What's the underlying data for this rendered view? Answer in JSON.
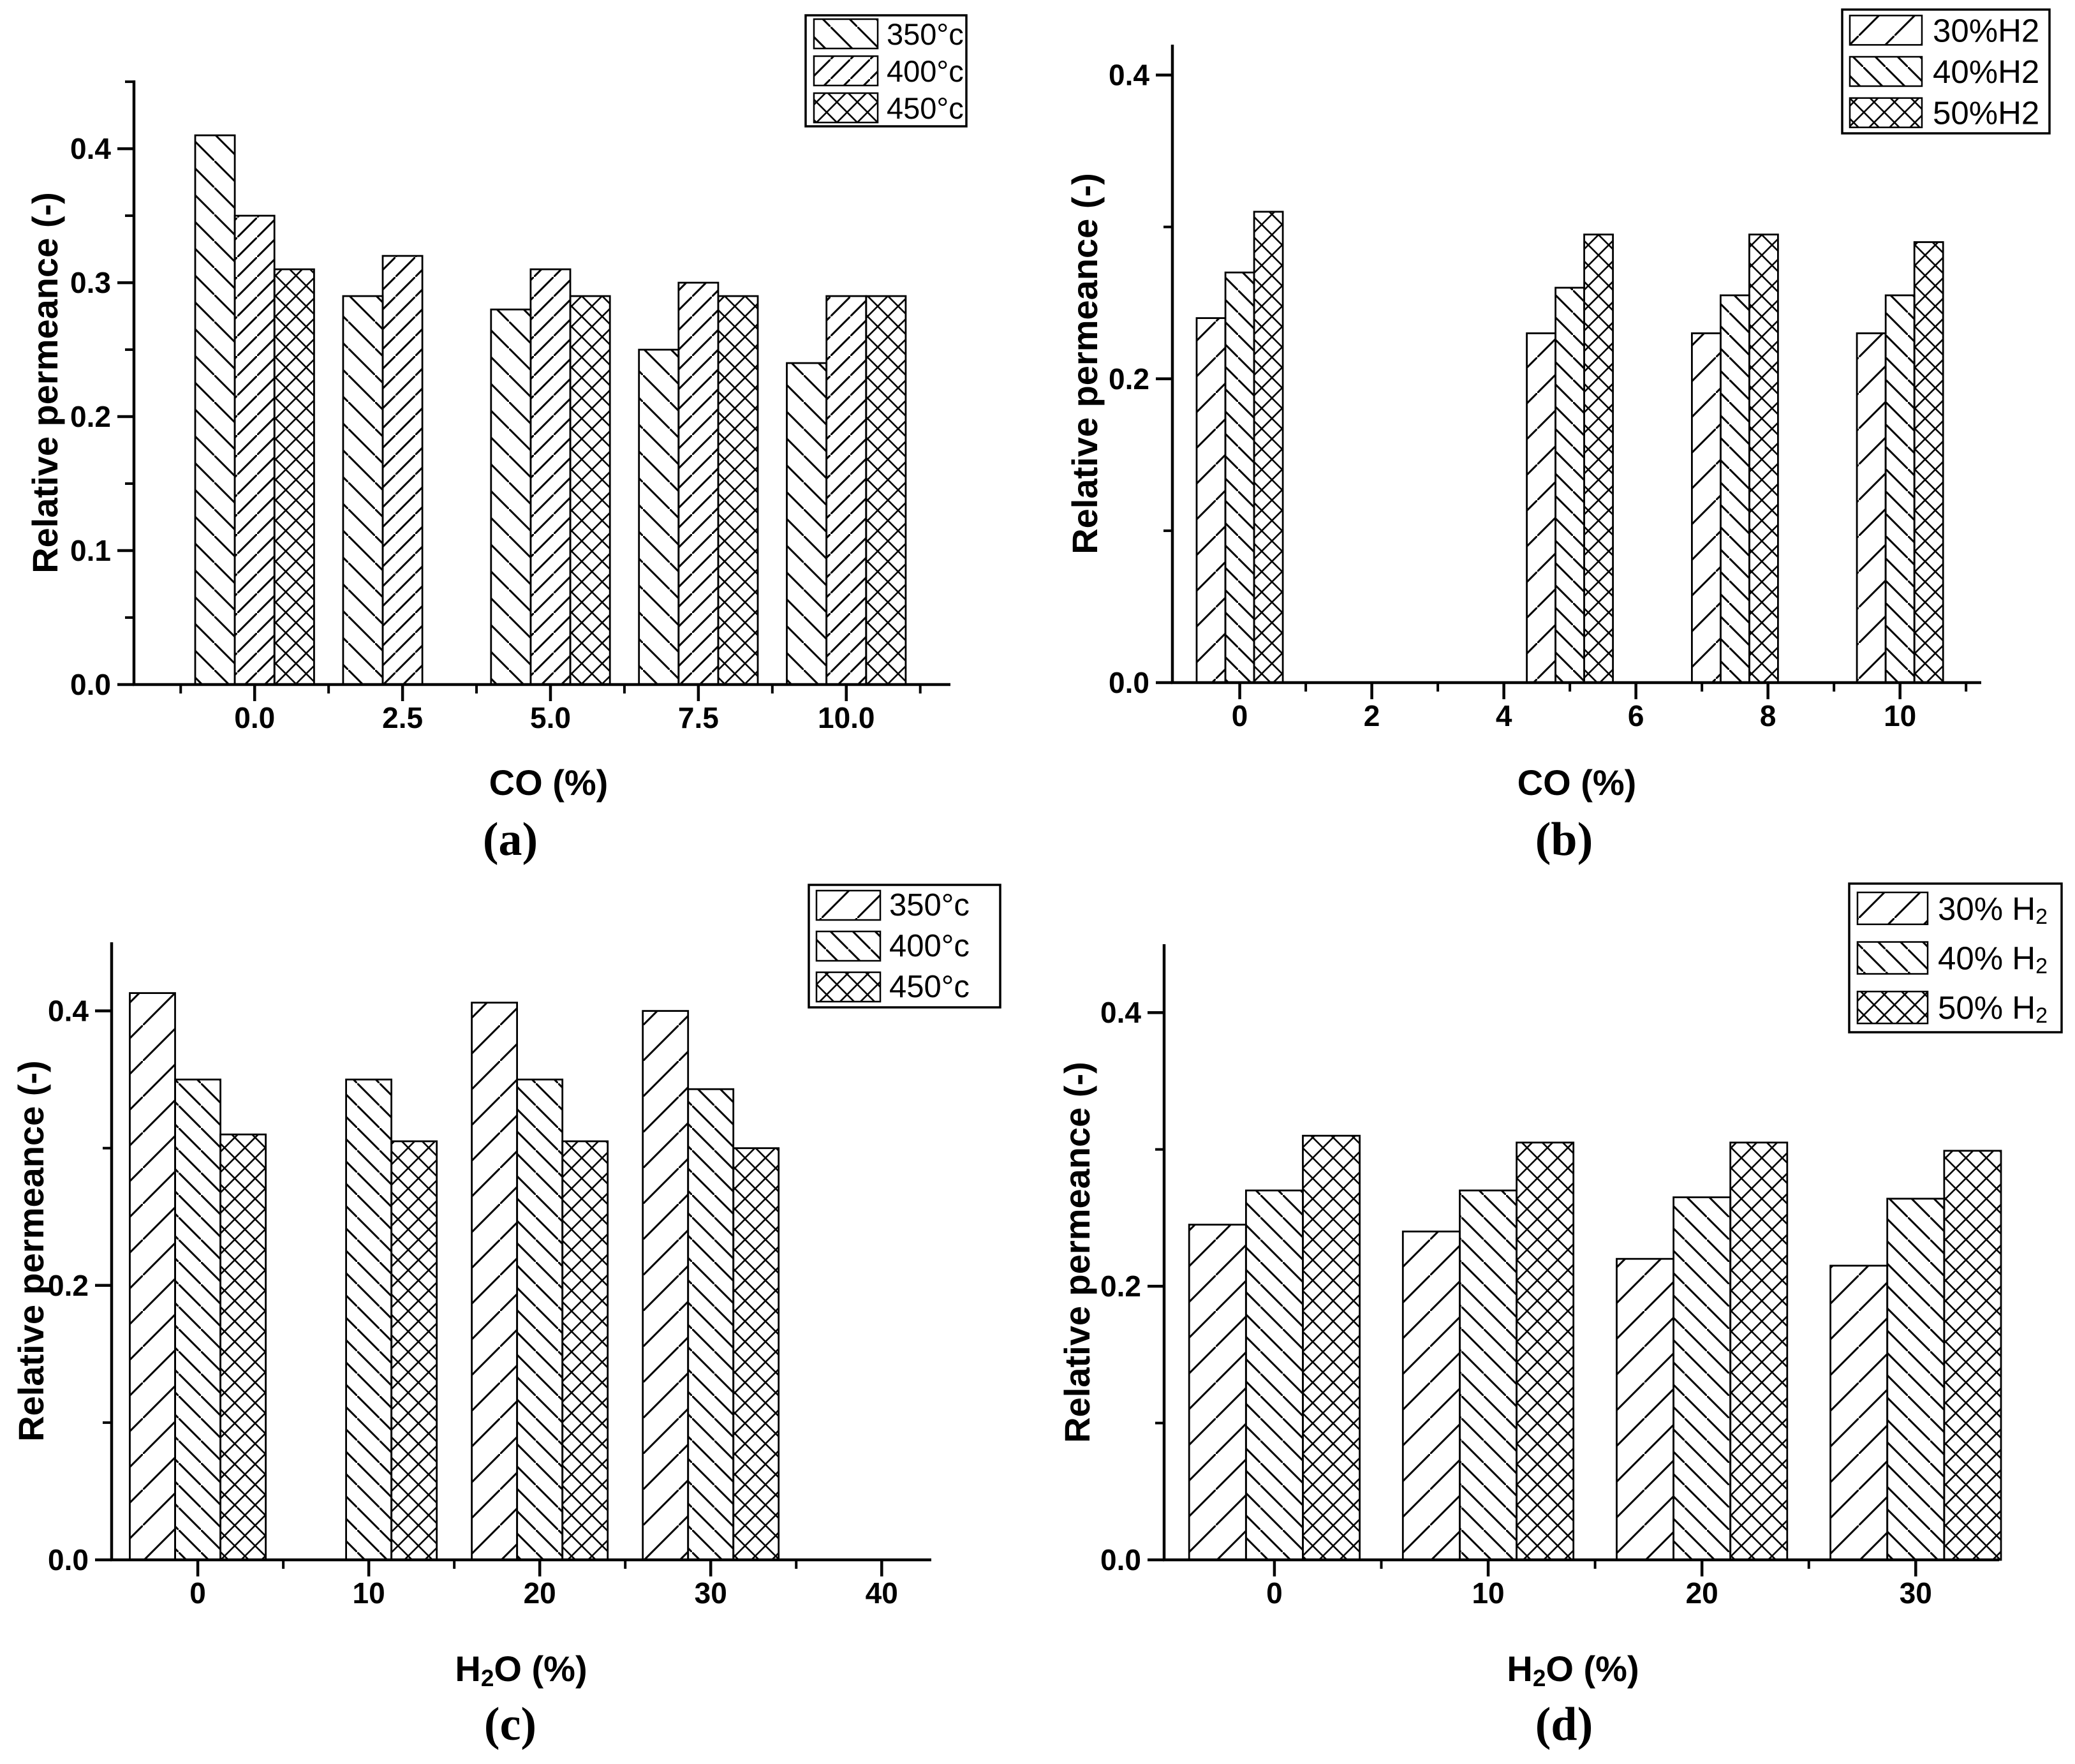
{
  "figure": {
    "background": "#ffffff",
    "ink": "#000000",
    "description_visible_text_only": true
  },
  "chart_data": [
    {
      "id": "a",
      "type": "bar",
      "panel_label": "(a)",
      "xlabel": [
        {
          "t": "CO (%)"
        }
      ],
      "ylabel": [
        {
          "t": "Relative permeance (-)"
        }
      ],
      "xlim": [
        -2.04,
        11.76
      ],
      "ylim": [
        0,
        0.451
      ],
      "x_major_ticks": [
        {
          "v": 0,
          "label": "0.0"
        },
        {
          "v": 2.5,
          "label": "2.5"
        },
        {
          "v": 5,
          "label": "5.0"
        },
        {
          "v": 7.5,
          "label": "7.5"
        },
        {
          "v": 10,
          "label": "10.0"
        }
      ],
      "x_minor_ticks": [
        -1.25,
        1.25,
        3.75,
        6.25,
        8.75,
        11.25
      ],
      "y_major_ticks": [
        {
          "v": 0,
          "label": "0.0"
        },
        {
          "v": 0.1,
          "label": "0.1"
        },
        {
          "v": 0.2,
          "label": "0.2"
        },
        {
          "v": 0.3,
          "label": "0.3"
        },
        {
          "v": 0.4,
          "label": "0.4"
        }
      ],
      "y_minor_ticks": [
        0.05,
        0.15,
        0.25,
        0.35,
        0.45
      ],
      "group_positions": [
        0,
        2.5,
        5,
        7.5,
        10
      ],
      "bar_width": 0.67,
      "grid": false,
      "legend_position": "top-right",
      "series": [
        {
          "name": [
            {
              "t": "350°c"
            }
          ],
          "hatch": "backslash-wide",
          "values": [
            0.41,
            0.29,
            0.28,
            0.25,
            0.24
          ]
        },
        {
          "name": [
            {
              "t": "400°c"
            }
          ],
          "hatch": "slash",
          "values": [
            0.35,
            0.32,
            0.31,
            0.3,
            0.29
          ]
        },
        {
          "name": [
            {
              "t": "450°c"
            }
          ],
          "hatch": "cross",
          "values": [
            0.31,
            null,
            0.29,
            0.29,
            0.29
          ]
        }
      ]
    },
    {
      "id": "b",
      "type": "bar",
      "panel_label": "(b)",
      "xlabel": [
        {
          "t": "CO (%)"
        }
      ],
      "ylabel": [
        {
          "t": "Relative permeance (-)"
        }
      ],
      "xlim": [
        -1.02,
        11.23
      ],
      "ylim": [
        0,
        0.42
      ],
      "x_major_ticks": [
        {
          "v": 0,
          "label": "0"
        },
        {
          "v": 2,
          "label": "2"
        },
        {
          "v": 4,
          "label": "4"
        },
        {
          "v": 6,
          "label": "6"
        },
        {
          "v": 8,
          "label": "8"
        },
        {
          "v": 10,
          "label": "10"
        }
      ],
      "x_minor_ticks": [
        1,
        3,
        5,
        7,
        9,
        11
      ],
      "y_major_ticks": [
        {
          "v": 0,
          "label": "0.0"
        },
        {
          "v": 0.2,
          "label": "0.2"
        },
        {
          "v": 0.4,
          "label": "0.4"
        }
      ],
      "y_minor_ticks": [
        0.1,
        0.3
      ],
      "group_positions": [
        0,
        5,
        7.5,
        10
      ],
      "bar_width": 0.435,
      "grid": false,
      "legend_position": "top-right",
      "series": [
        {
          "name": [
            {
              "t": "30%H2"
            }
          ],
          "hatch": "slash-wide",
          "values": [
            0.24,
            0.23,
            0.23,
            0.23
          ]
        },
        {
          "name": [
            {
              "t": "40%H2"
            }
          ],
          "hatch": "backslash",
          "values": [
            0.27,
            0.26,
            0.255,
            0.255
          ]
        },
        {
          "name": [
            {
              "t": "50%H2"
            }
          ],
          "hatch": "cross",
          "values": [
            0.31,
            0.295,
            0.295,
            0.29
          ]
        }
      ]
    },
    {
      "id": "c",
      "type": "bar",
      "panel_label": "(c)",
      "xlabel": [
        {
          "t": "H"
        },
        {
          "t": "2",
          "sub": true
        },
        {
          "t": "O (%)"
        }
      ],
      "ylabel": [
        {
          "t": "Relative permeance (-)"
        }
      ],
      "xlim": [
        -5.04,
        42.9
      ],
      "ylim": [
        0,
        0.45
      ],
      "x_major_ticks": [
        {
          "v": 0,
          "label": "0"
        },
        {
          "v": 10,
          "label": "10"
        },
        {
          "v": 20,
          "label": "20"
        },
        {
          "v": 30,
          "label": "30"
        },
        {
          "v": 40,
          "label": "40"
        }
      ],
      "x_minor_ticks": [
        5,
        15,
        25,
        35
      ],
      "y_major_ticks": [
        {
          "v": 0,
          "label": "0.0"
        },
        {
          "v": 0.2,
          "label": "0.2"
        },
        {
          "v": 0.4,
          "label": "0.4"
        }
      ],
      "y_minor_ticks": [
        0.1,
        0.3
      ],
      "group_positions": [
        0,
        10,
        20,
        30
      ],
      "bar_width": 2.65,
      "grid": false,
      "legend_position": "top-right",
      "series": [
        {
          "name": [
            {
              "t": "350°c"
            }
          ],
          "hatch": "slash-wide",
          "values": [
            0.413,
            null,
            0.406,
            0.4
          ]
        },
        {
          "name": [
            {
              "t": "400°c"
            }
          ],
          "hatch": "backslash",
          "values": [
            0.35,
            0.35,
            0.35,
            0.343
          ]
        },
        {
          "name": [
            {
              "t": "450°c"
            }
          ],
          "hatch": "cross",
          "values": [
            0.31,
            0.305,
            0.305,
            0.3
          ]
        }
      ]
    },
    {
      "id": "d",
      "type": "bar",
      "panel_label": "(d)",
      "xlabel": [
        {
          "t": "H"
        },
        {
          "t": "2",
          "sub": true
        },
        {
          "t": "O (%)"
        }
      ],
      "ylabel": [
        {
          "t": "Relative permeance (-)"
        }
      ],
      "xlim": [
        -5.16,
        33.9
      ],
      "ylim": [
        0,
        0.45
      ],
      "x_major_ticks": [
        {
          "v": 0,
          "label": "0"
        },
        {
          "v": 10,
          "label": "10"
        },
        {
          "v": 20,
          "label": "20"
        },
        {
          "v": 30,
          "label": "30"
        }
      ],
      "x_minor_ticks": [
        5,
        15,
        25
      ],
      "y_major_ticks": [
        {
          "v": 0,
          "label": "0.0"
        },
        {
          "v": 0.2,
          "label": "0.2"
        },
        {
          "v": 0.4,
          "label": "0.4"
        }
      ],
      "y_minor_ticks": [
        0.1,
        0.3
      ],
      "group_positions": [
        0,
        10,
        20,
        30
      ],
      "bar_width": 2.66,
      "grid": false,
      "legend_position": "top-right",
      "series": [
        {
          "name": [
            {
              "t": "30% H"
            },
            {
              "t": "2",
              "sub": true
            }
          ],
          "hatch": "slash-wide",
          "values": [
            0.245,
            0.24,
            0.22,
            0.215
          ]
        },
        {
          "name": [
            {
              "t": "40% H"
            },
            {
              "t": "2",
              "sub": true
            }
          ],
          "hatch": "backslash",
          "values": [
            0.27,
            0.27,
            0.265,
            0.264
          ]
        },
        {
          "name": [
            {
              "t": "50% H"
            },
            {
              "t": "2",
              "sub": true
            }
          ],
          "hatch": "cross",
          "values": [
            0.31,
            0.305,
            0.305,
            0.299
          ]
        }
      ]
    }
  ]
}
